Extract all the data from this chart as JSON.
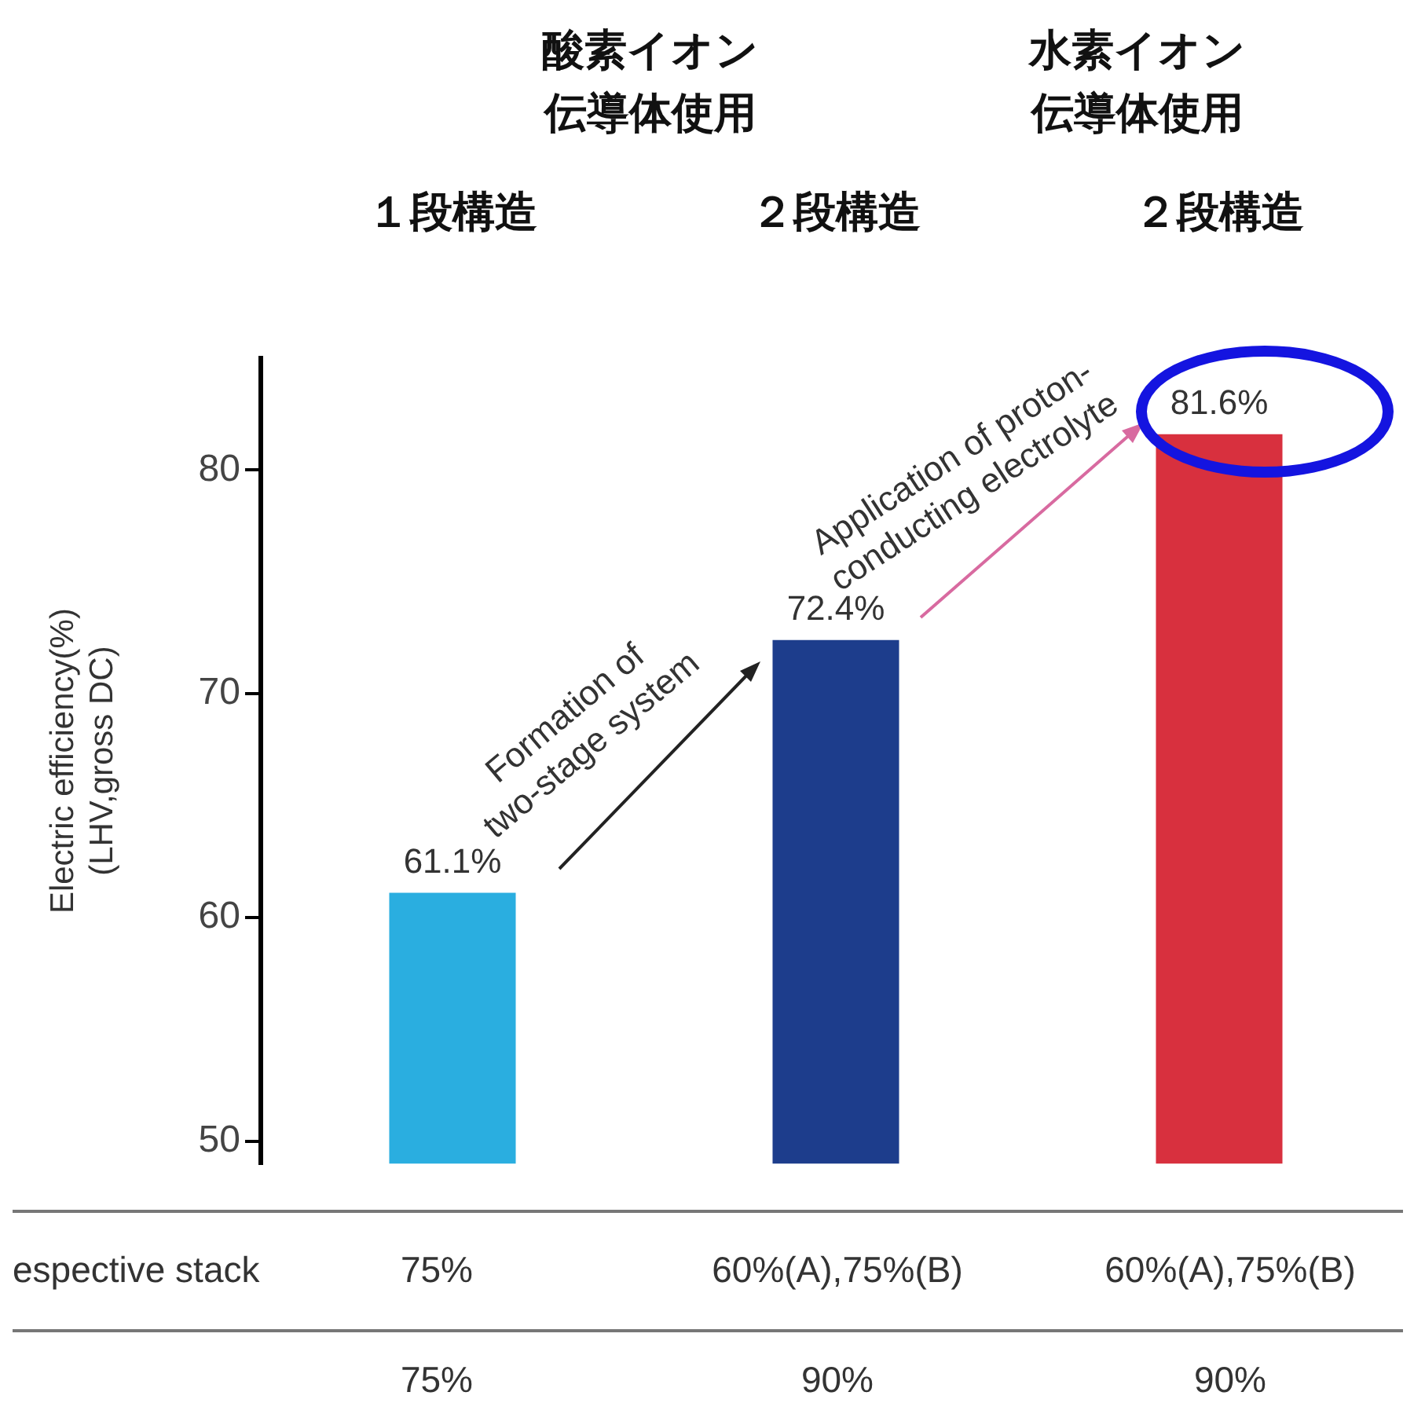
{
  "chart_data": {
    "type": "bar",
    "categories": [
      "１段構造",
      "２段構造",
      "２段構造"
    ],
    "values": [
      61.1,
      72.4,
      81.6
    ],
    "colors": [
      "#2aaee0",
      "#1d3d8c",
      "#d8303e"
    ],
    "value_labels": [
      "61.1%",
      "72.4%",
      "81.6%"
    ],
    "ylabel": "Electric efficiency(%)\n(LHV,gross DC)",
    "ylim": [
      49,
      85
    ],
    "yticks": [
      50,
      60,
      70,
      80
    ],
    "grid": false,
    "legend": false,
    "annotations": [
      "酸素イオン伝導体使用",
      "水素イオン伝導体使用",
      "Formation of\ntwo-stage system",
      "Application of proton-\nconducting electrolyte",
      "espective stack",
      "75%",
      "60%(A),75%(B)",
      "60%(A),75%(B)",
      "75%",
      "90%",
      "90%"
    ]
  }
}
